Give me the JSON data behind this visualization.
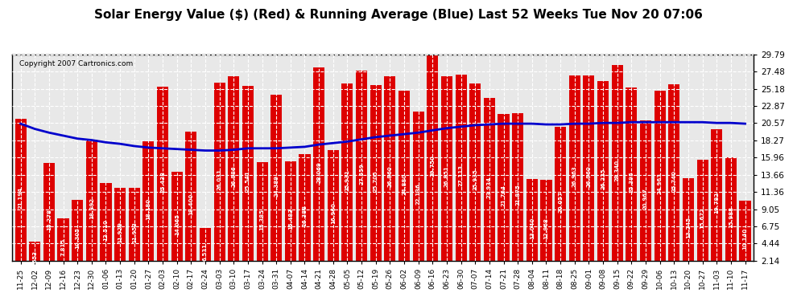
{
  "title": "Solar Energy Value ($) (Red) & Running Average (Blue) Last 52 Weeks Tue Nov 20 07:06",
  "copyright": "Copyright 2007 Cartronics.com",
  "bar_color": "#dd0000",
  "line_color": "#0000cc",
  "bg_color": "#ffffff",
  "plot_bg_color": "#e8e8e8",
  "grid_color": "#bbbbbb",
  "ylim": [
    2.14,
    29.79
  ],
  "yticks": [
    2.14,
    4.44,
    6.75,
    9.05,
    11.36,
    13.66,
    15.96,
    18.27,
    20.57,
    22.87,
    25.18,
    27.48,
    29.79
  ],
  "dates": [
    "11-25",
    "12-02",
    "12-09",
    "12-16",
    "12-23",
    "12-30",
    "01-06",
    "01-13",
    "01-20",
    "01-27",
    "02-03",
    "02-10",
    "02-17",
    "02-24",
    "03-03",
    "03-10",
    "03-17",
    "03-24",
    "03-31",
    "04-07",
    "04-14",
    "04-21",
    "04-28",
    "05-05",
    "05-12",
    "05-19",
    "05-26",
    "06-02",
    "06-09",
    "06-16",
    "06-23",
    "06-30",
    "07-07",
    "07-14",
    "07-21",
    "07-28",
    "08-04",
    "08-11",
    "08-18",
    "08-25",
    "09-01",
    "09-08",
    "09-15",
    "09-22",
    "09-29",
    "10-06",
    "10-13",
    "10-20",
    "10-27",
    "11-03",
    "11-10",
    "11-17"
  ],
  "values": [
    21.194,
    4.653,
    15.278,
    7.815,
    10.305,
    18.392,
    12.51,
    11.929,
    11.953,
    18.18,
    25.438,
    14.065,
    19.4,
    6.531,
    26.031,
    26.886,
    25.541,
    15.385,
    24.389,
    15.483,
    16.388,
    28.069,
    16.96,
    25.931,
    27.559,
    25.705,
    26.86,
    24.88,
    22.136,
    29.75,
    26.851,
    27.113,
    25.935,
    23.934,
    21.764,
    21.875,
    13.04,
    12.968,
    20.057,
    26.963,
    26.96,
    26.225,
    28.34,
    25.395,
    20.967,
    24.963,
    25.74,
    13.245,
    15.672,
    19.782,
    15.988,
    10.14
  ],
  "running_avg": [
    20.5,
    19.8,
    19.3,
    18.9,
    18.5,
    18.3,
    18.0,
    17.8,
    17.5,
    17.3,
    17.2,
    17.1,
    17.0,
    16.9,
    16.9,
    17.0,
    17.2,
    17.2,
    17.2,
    17.3,
    17.4,
    17.7,
    17.9,
    18.1,
    18.4,
    18.7,
    18.9,
    19.1,
    19.3,
    19.6,
    19.9,
    20.1,
    20.3,
    20.4,
    20.5,
    20.5,
    20.5,
    20.4,
    20.4,
    20.5,
    20.5,
    20.6,
    20.6,
    20.7,
    20.7,
    20.7,
    20.7,
    20.7,
    20.7,
    20.6,
    20.6,
    20.5
  ]
}
